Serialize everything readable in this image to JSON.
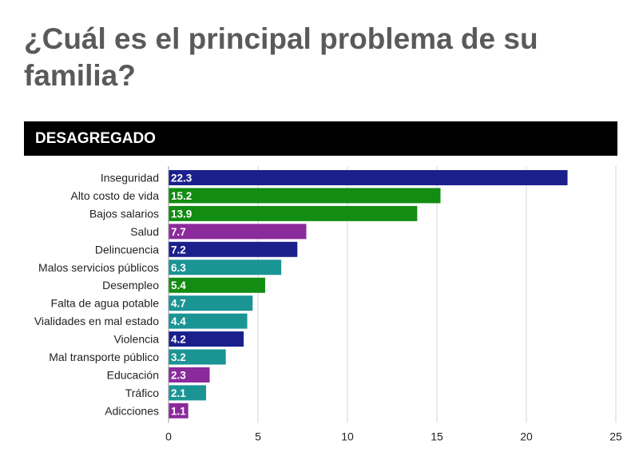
{
  "title": "¿Cuál es el principal problema de su familia?",
  "banner": "DESAGREGADO",
  "colors": {
    "navy": "#1a1f8c",
    "green": "#128c12",
    "purple": "#8b2a9b",
    "teal": "#1b9494"
  },
  "chart_data": {
    "type": "bar",
    "orientation": "horizontal",
    "categories": [
      "Inseguridad",
      "Alto costo de vida",
      "Bajos salarios",
      "Salud",
      "Delincuencia",
      "Malos servicios públicos",
      "Desempleo",
      "Falta de agua potable",
      "Vialidades en mal estado",
      "Violencia",
      "Mal transporte público",
      "Educación",
      "Tráfico",
      "Adicciones"
    ],
    "values": [
      22.3,
      15.2,
      13.9,
      7.7,
      7.2,
      6.3,
      5.4,
      4.7,
      4.4,
      4.2,
      3.2,
      2.3,
      2.1,
      1.1
    ],
    "value_labels": [
      "22.3",
      "15.2",
      "13.9",
      "7.7",
      "7.2",
      "6.3",
      "5.4",
      "4.7",
      "4.4",
      "4.2",
      "3.2",
      "2.3",
      "2.1",
      "1.1"
    ],
    "bar_colors": [
      "navy",
      "green",
      "green",
      "purple",
      "navy",
      "teal",
      "green",
      "teal",
      "teal",
      "navy",
      "teal",
      "purple",
      "teal",
      "purple"
    ],
    "xlim": [
      0,
      25
    ],
    "xticks": [
      0,
      5,
      10,
      15,
      20,
      25
    ],
    "xtick_labels": [
      "0",
      "5",
      "10",
      "15",
      "20",
      "25"
    ],
    "grid": "vertical",
    "legend": "none"
  }
}
